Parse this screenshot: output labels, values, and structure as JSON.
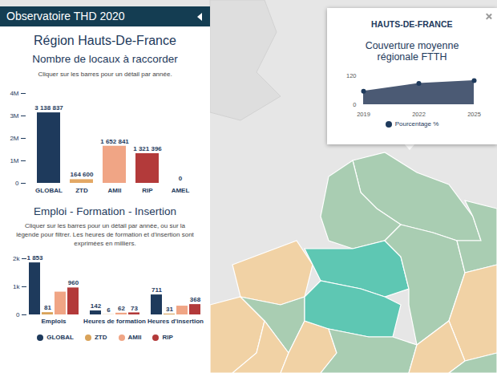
{
  "header": {
    "title": "Observatoire THD 2020"
  },
  "panel": {
    "title": "Région Hauts-De-France"
  },
  "popup": {
    "title": "HAUTS-DE-FRANCE"
  },
  "chart_data": [
    {
      "type": "bar",
      "title": "Nombre de locaux à raccorder",
      "subtitle": "Cliquer sur les barres pour un détail par année.",
      "categories": [
        "GLOBAL",
        "ZTD",
        "AMII",
        "RIP",
        "AMEL"
      ],
      "values": [
        3138837,
        164600,
        1652841,
        1321396,
        0
      ],
      "value_labels": [
        "3 138 837",
        "164 600",
        "1 652 841",
        "1 321 396",
        "0"
      ],
      "colors": [
        "#1e3a5c",
        "#e3a865",
        "#f0a585",
        "#b33a3a",
        "#8e8e8e"
      ],
      "ylim": [
        0,
        4000000
      ],
      "yticks": [
        0,
        {
          "value": 1000000,
          "label": "1M"
        },
        {
          "value": 2000000,
          "label": "2M"
        },
        {
          "value": 3000000,
          "label": "3M"
        },
        {
          "value": 4000000,
          "label": "4M"
        }
      ],
      "grid": false,
      "data_labels": true
    },
    {
      "type": "bar",
      "title": "Emploi - Formation - Insertion",
      "subtitle": "Cliquer sur les barres pour un détail par année, ou sur la légende pour filtrer. Les heures de formation et d'insertion sont exprimées en milliers.",
      "categories": [
        "Emplois",
        "Heures de formation",
        "Heures d'insertion"
      ],
      "series": [
        {
          "name": "GLOBAL",
          "color": "#1e3a5c",
          "values": [
            1853,
            142,
            711
          ],
          "value_labels": [
            "1 853",
            "142",
            "711"
          ]
        },
        {
          "name": "ZTD",
          "color": "#d9a35a",
          "values": [
            81,
            6,
            31
          ],
          "value_labels": [
            "81",
            "6",
            "31"
          ]
        },
        {
          "name": "AMII",
          "color": "#f0a585",
          "values": [
            812,
            62,
            312
          ],
          "value_labels": [
            null,
            "62",
            null
          ]
        },
        {
          "name": "RIP",
          "color": "#b33a3a",
          "values": [
            960,
            73,
            368
          ],
          "value_labels": [
            "960",
            "73",
            "368"
          ]
        }
      ],
      "ylim": [
        0,
        2000
      ],
      "yticks": [
        0,
        {
          "value": 1000,
          "label": "1k"
        },
        {
          "value": 2000,
          "label": "2k"
        }
      ],
      "grid": false,
      "data_labels": true,
      "legend": "bottom"
    },
    {
      "type": "area",
      "title": "Couverture moyenne régionale FTTH",
      "x": [
        2019,
        2022,
        2025
      ],
      "series": [
        {
          "name": "Pourcentage %",
          "color": "#4b5a74",
          "values": [
            56,
            88,
            100
          ]
        }
      ],
      "xlim": [
        2019,
        2025
      ],
      "xticks": [
        2019,
        2022,
        2025
      ],
      "ylim": [
        0,
        120
      ],
      "yticks": [
        0,
        120
      ],
      "marker": "circle",
      "legend": "bottom",
      "grid": false
    }
  ]
}
